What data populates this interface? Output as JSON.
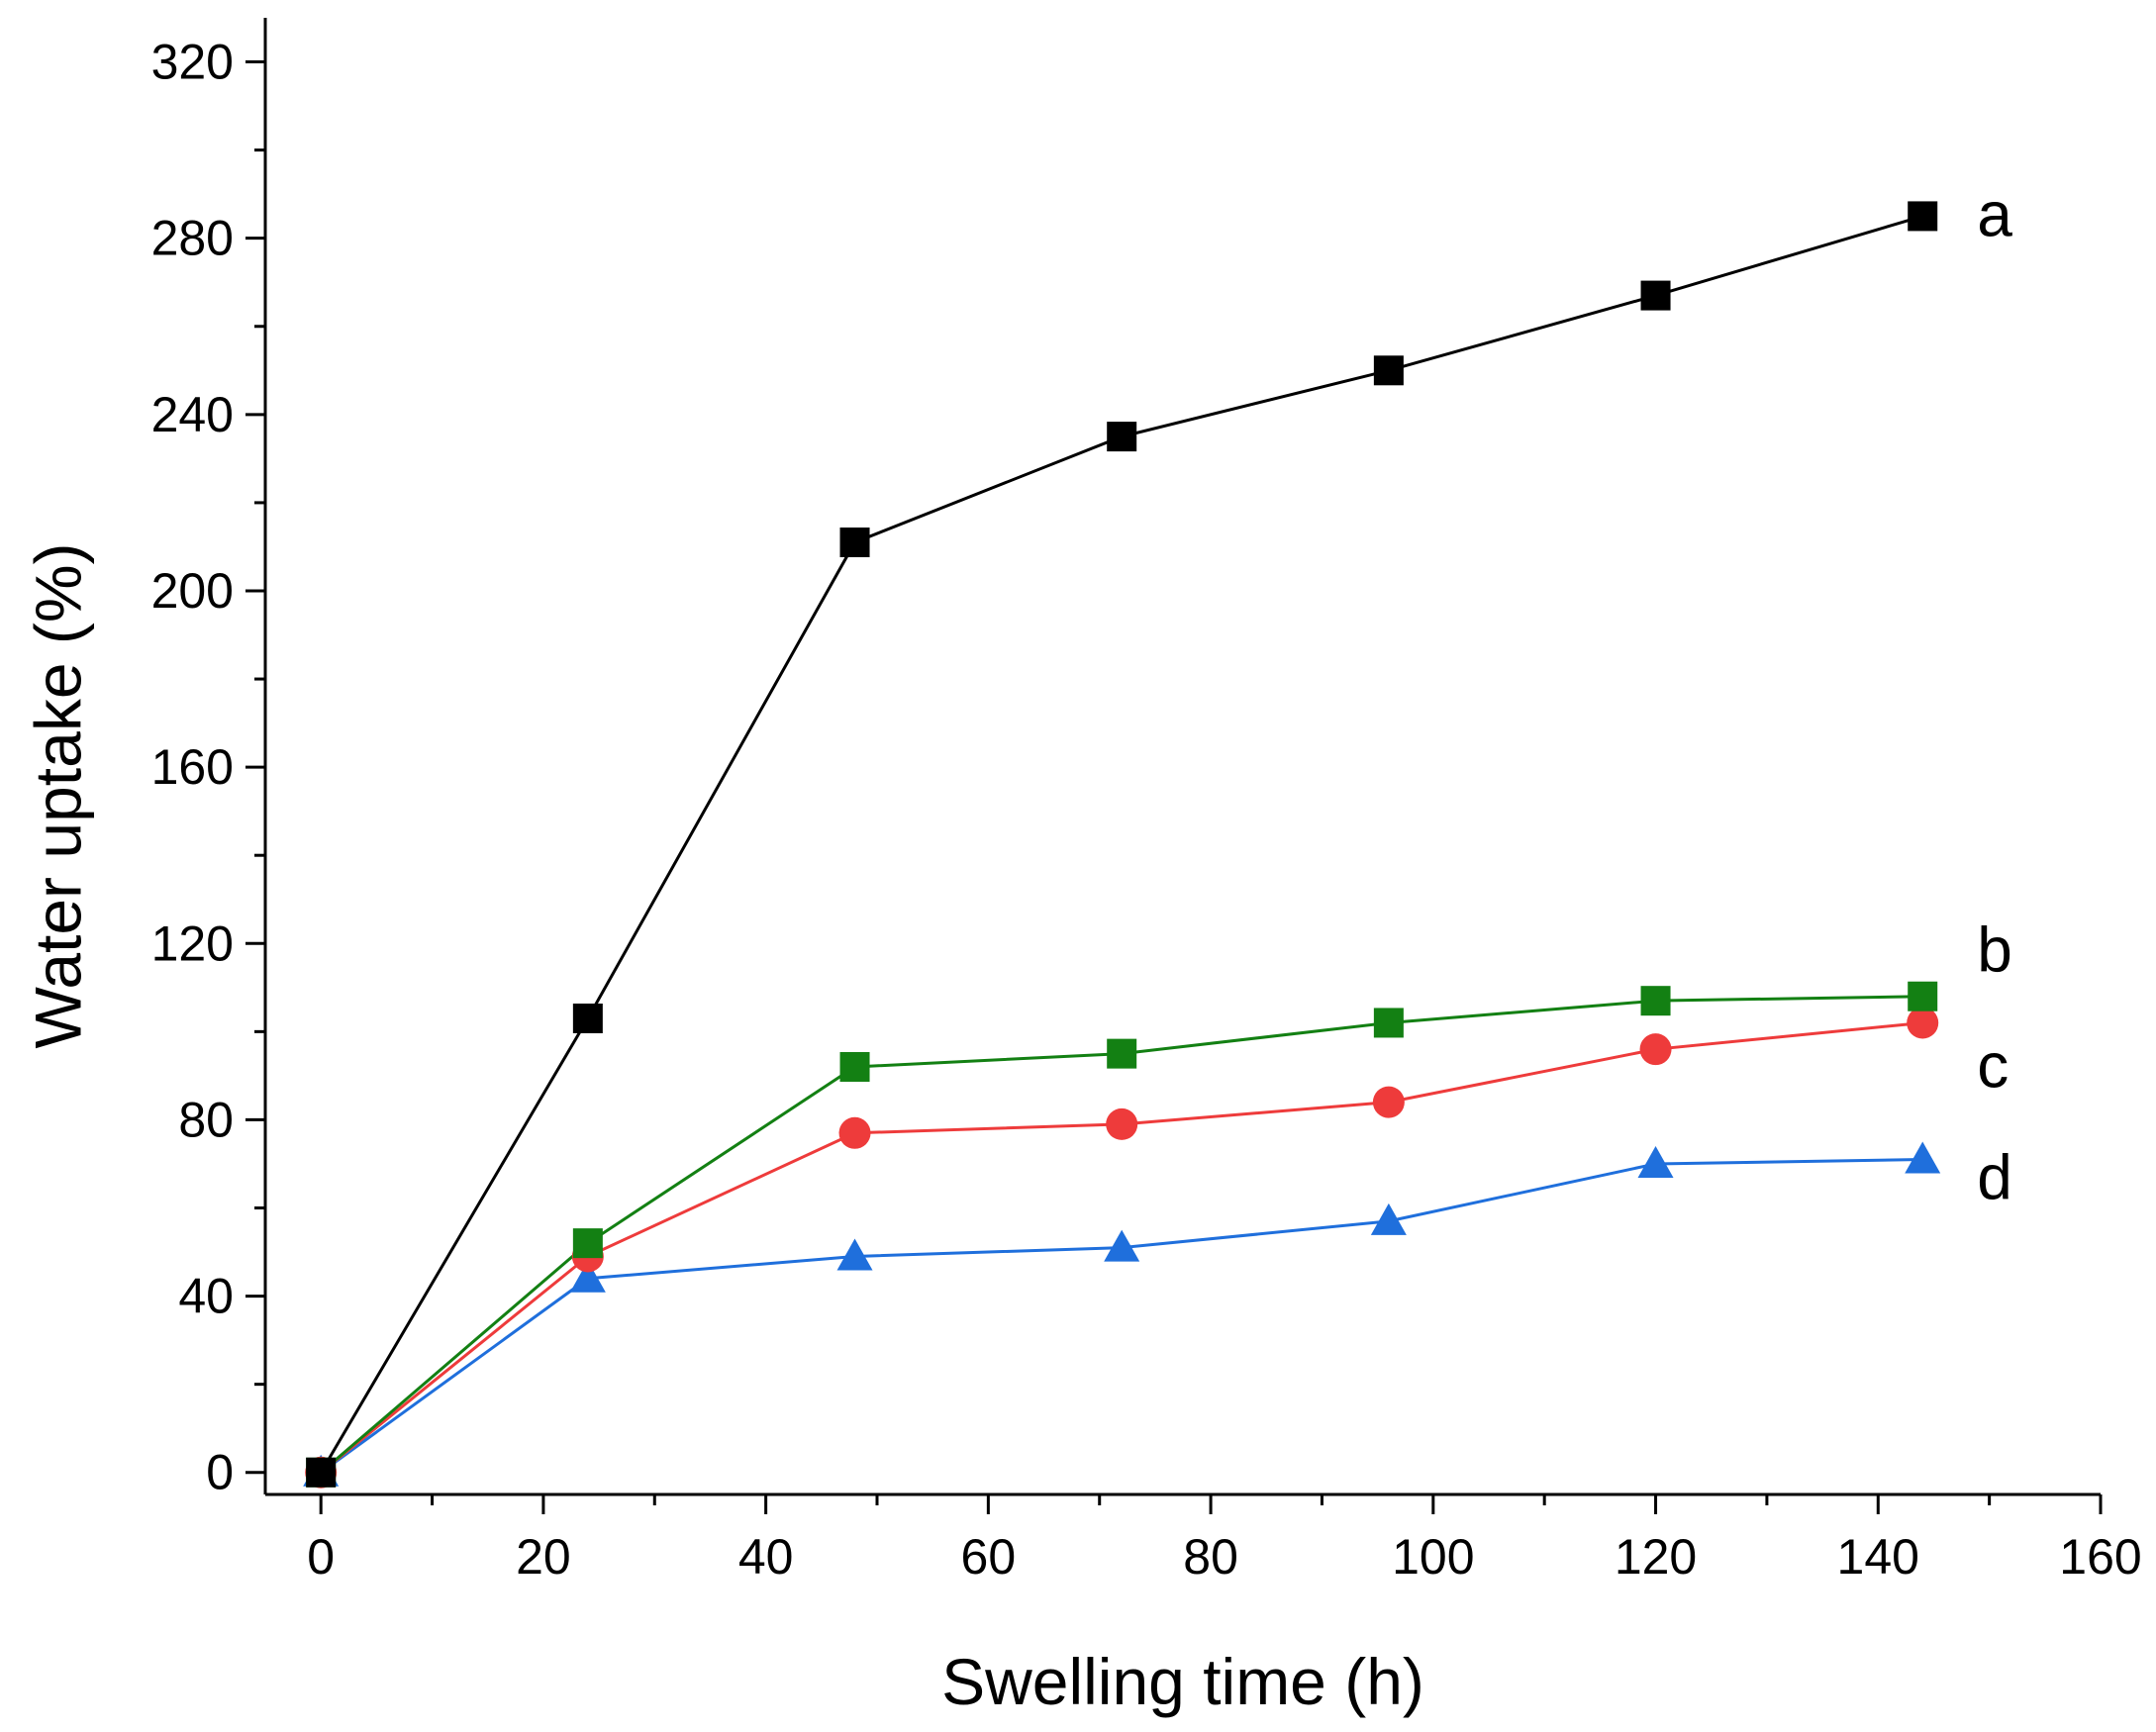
{
  "chart_data": {
    "type": "line",
    "title": "",
    "xlabel": "Swelling time (h)",
    "ylabel": "Water uptake (%)",
    "xlim": [
      -5,
      160
    ],
    "ylim": [
      -5,
      330
    ],
    "xticks": [
      0,
      20,
      40,
      60,
      80,
      100,
      120,
      140,
      160
    ],
    "yticks": [
      0,
      40,
      80,
      120,
      160,
      200,
      240,
      280,
      320
    ],
    "x": [
      0,
      24,
      48,
      72,
      96,
      120,
      144
    ],
    "grid": false,
    "legend": "none",
    "series": [
      {
        "name": "a",
        "marker": "square",
        "color": "#000000",
        "values": [
          0,
          103,
          211,
          235,
          250,
          267,
          285
        ]
      },
      {
        "name": "b",
        "marker": "square",
        "color": "#138013",
        "values": [
          0,
          52,
          92,
          95,
          102,
          107,
          108
        ]
      },
      {
        "name": "c",
        "marker": "circle",
        "color": "#ee3b3b",
        "values": [
          0,
          49,
          77,
          79,
          84,
          96,
          102
        ]
      },
      {
        "name": "d",
        "marker": "triangle",
        "color": "#1f6fdc",
        "values": [
          0,
          44,
          49,
          51,
          57,
          70,
          71
        ]
      }
    ]
  }
}
